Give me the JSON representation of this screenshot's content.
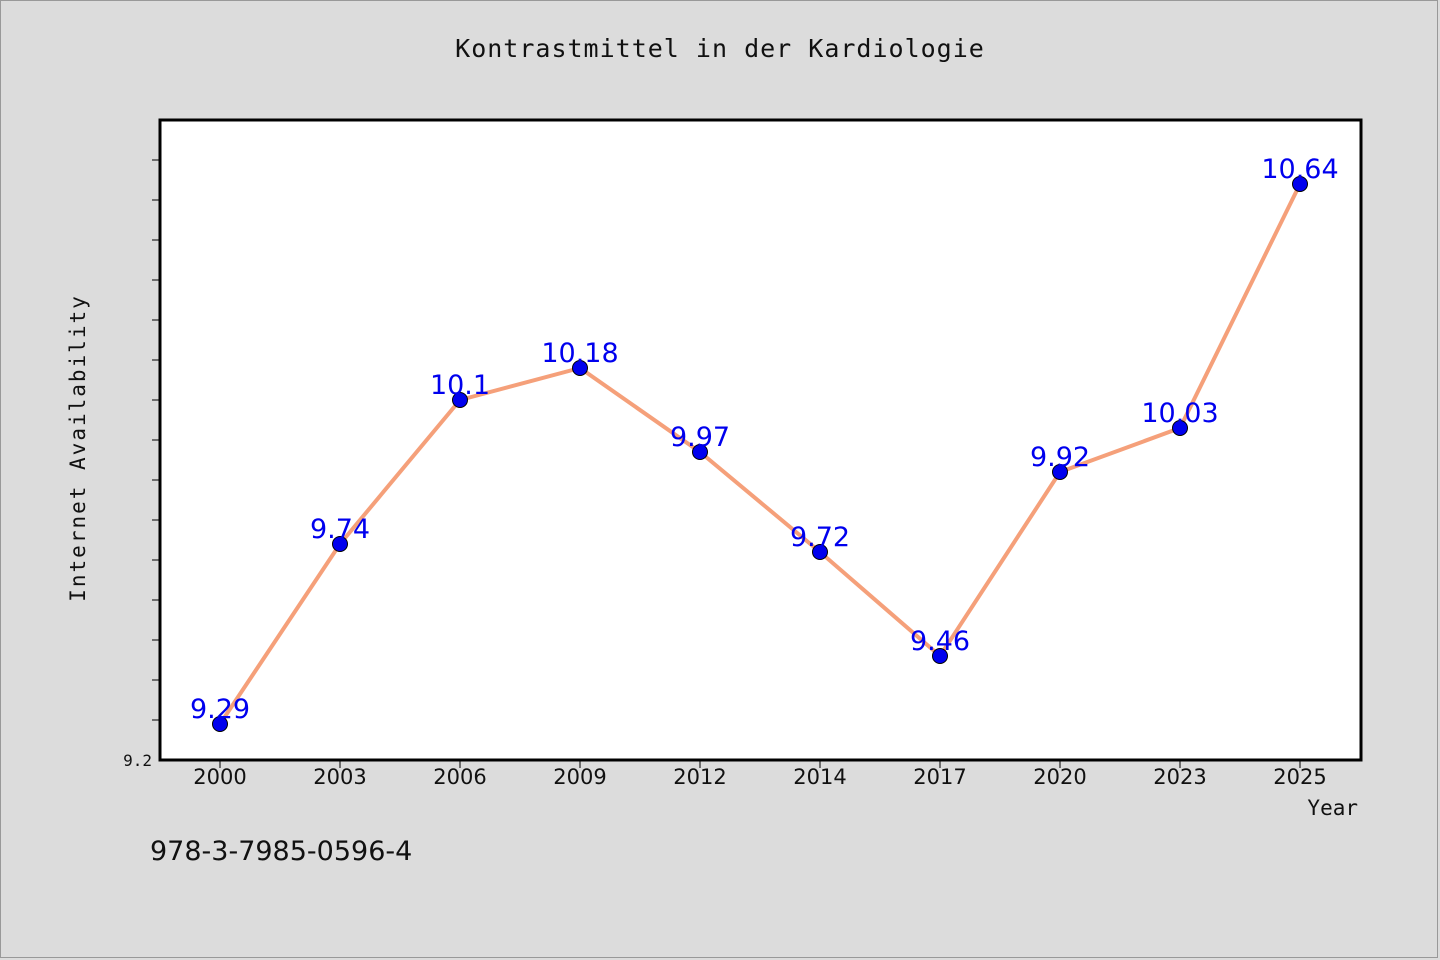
{
  "chart_data": {
    "type": "line",
    "title": "Kontrastmittel in der Kardiologie",
    "xlabel": "Year",
    "ylabel": "Internet Availability",
    "categories": [
      "2000",
      "2003",
      "2006",
      "2009",
      "2012",
      "2014",
      "2017",
      "2020",
      "2023",
      "2025"
    ],
    "series": [
      {
        "values": [
          9.29,
          9.74,
          10.1,
          10.18,
          9.97,
          9.72,
          9.46,
          9.92,
          10.03,
          10.64
        ],
        "data_labels": [
          "9.29",
          "9.74",
          "10.1",
          "10.18",
          "9.97",
          "9.72",
          "9.46",
          "9.92",
          "10.03",
          "10.64"
        ]
      }
    ],
    "yticks": [
      "9.2"
    ],
    "ylim": [
      9.2,
      10.8
    ],
    "grid": false,
    "line_color": "#f5a07a",
    "marker_color": "#0000ee",
    "label_color": "#0000ee"
  },
  "isbn": "978-3-7985-0596-4"
}
